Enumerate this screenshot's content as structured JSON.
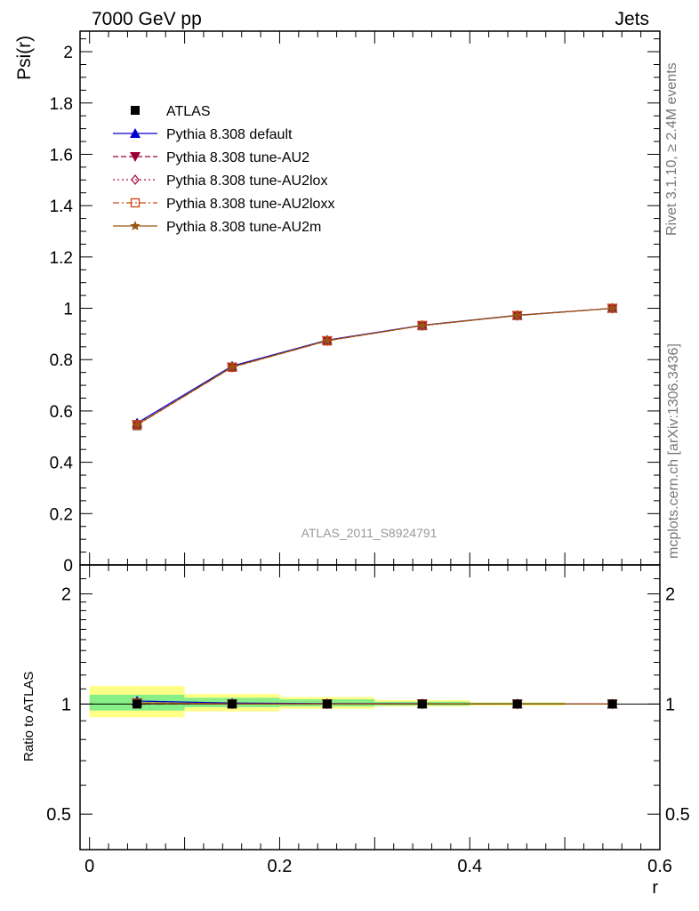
{
  "header": {
    "left": "7000 GeV pp",
    "right": "Jets"
  },
  "side_labels": {
    "rivet": "Rivet 3.1.10, ≥ 2.4M events",
    "mcplots": "mcplots.cern.ch [arXiv:1306.3436]"
  },
  "watermark": "ATLAS_2011_S8924791",
  "chart_data": [
    {
      "type": "line",
      "panel": "main",
      "ylabel": "Psi(r)",
      "xlim": [
        -0.01,
        0.6
      ],
      "ylim": [
        0,
        2.08
      ],
      "yticks": [
        0,
        0.2,
        0.4,
        0.6,
        0.8,
        1,
        1.2,
        1.4,
        1.6,
        1.8,
        2
      ],
      "ytick_labels": [
        "0",
        "0.2",
        "0.4",
        "0.6",
        "0.8",
        "1",
        "1.2",
        "1.4",
        "1.6",
        "1.8",
        "2"
      ],
      "legend_position": "top-left",
      "x": [
        0.05,
        0.15,
        0.25,
        0.35,
        0.45,
        0.55
      ],
      "series": [
        {
          "name": "ATLAS",
          "color": "#000000",
          "marker": "square-filled",
          "line": "none",
          "values": [
            0.543,
            0.77,
            0.873,
            0.932,
            0.972,
            1.0
          ]
        },
        {
          "name": "Pythia 8.308 default",
          "color": "#0000cc",
          "marker": "triangle-up-filled",
          "line": "solid",
          "values": [
            0.553,
            0.775,
            0.876,
            0.934,
            0.973,
            1.0
          ]
        },
        {
          "name": "Pythia 8.308 tune-AU2",
          "color": "#990033",
          "marker": "triangle-down-filled",
          "line": "dashed",
          "values": [
            0.547,
            0.771,
            0.874,
            0.933,
            0.972,
            1.0
          ]
        },
        {
          "name": "Pythia 8.308 tune-AU2lox",
          "color": "#aa1144",
          "marker": "diamond-open",
          "line": "dotted",
          "values": [
            0.546,
            0.771,
            0.874,
            0.933,
            0.972,
            1.0
          ]
        },
        {
          "name": "Pythia 8.308 tune-AU2loxx",
          "color": "#cc4411",
          "marker": "square-open",
          "line": "dashdot",
          "values": [
            0.545,
            0.77,
            0.873,
            0.933,
            0.972,
            1.0
          ]
        },
        {
          "name": "Pythia 8.308 tune-AU2m",
          "color": "#995511",
          "marker": "star",
          "line": "solid",
          "values": [
            0.546,
            0.771,
            0.874,
            0.933,
            0.972,
            1.0
          ]
        }
      ]
    },
    {
      "type": "line",
      "panel": "ratio",
      "xlabel": "r",
      "ylabel": "Ratio to ATLAS",
      "xlim": [
        -0.01,
        0.6
      ],
      "ylim": [
        0.4,
        2.4
      ],
      "xticks": [
        0,
        0.2,
        0.4,
        0.6
      ],
      "xtick_labels": [
        "0",
        "0.2",
        "0.4",
        "0.6"
      ],
      "yticks": [
        0.5,
        1,
        2
      ],
      "ytick_labels": [
        "0.5",
        "1",
        "2"
      ],
      "uncertainty_bands": [
        {
          "x_low": 0.0,
          "x_high": 0.1,
          "inner": [
            0.96,
            1.06
          ],
          "outer": [
            0.92,
            1.12
          ]
        },
        {
          "x_low": 0.1,
          "x_high": 0.2,
          "inner": [
            0.98,
            1.04
          ],
          "outer": [
            0.955,
            1.065
          ]
        },
        {
          "x_low": 0.2,
          "x_high": 0.3,
          "inner": [
            0.985,
            1.03
          ],
          "outer": [
            0.97,
            1.045
          ]
        },
        {
          "x_low": 0.3,
          "x_high": 0.4,
          "inner": [
            0.99,
            1.015
          ],
          "outer": [
            0.985,
            1.025
          ]
        },
        {
          "x_low": 0.4,
          "x_high": 0.5,
          "inner": [
            0.995,
            1.008
          ],
          "outer": [
            0.99,
            1.012
          ]
        }
      ],
      "band_colors": {
        "inner": "#88ee88",
        "outer": "#ffff88"
      },
      "x": [
        0.05,
        0.15,
        0.25,
        0.35,
        0.45,
        0.55
      ],
      "series": [
        {
          "name": "Pythia 8.308 default",
          "color": "#0000cc",
          "values": [
            1.019,
            1.006,
            1.003,
            1.002,
            1.001,
            1.0
          ]
        },
        {
          "name": "Pythia 8.308 tune-AU2",
          "color": "#990033",
          "values": [
            1.007,
            1.001,
            1.001,
            1.001,
            1.0,
            1.0
          ]
        },
        {
          "name": "Pythia 8.308 tune-AU2lox",
          "color": "#aa1144",
          "values": [
            1.006,
            1.001,
            1.001,
            1.001,
            1.0,
            1.0
          ]
        },
        {
          "name": "Pythia 8.308 tune-AU2loxx",
          "color": "#cc4411",
          "values": [
            1.004,
            1.0,
            1.0,
            1.001,
            1.0,
            1.0
          ]
        },
        {
          "name": "Pythia 8.308 tune-AU2m",
          "color": "#995511",
          "values": [
            1.006,
            1.001,
            1.001,
            1.001,
            1.0,
            1.0
          ]
        }
      ]
    }
  ]
}
